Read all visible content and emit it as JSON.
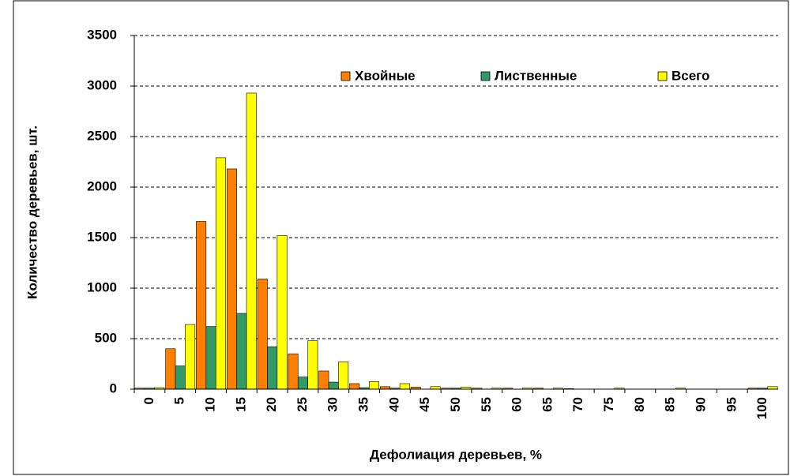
{
  "chart_data": {
    "type": "bar",
    "x_label": "Дефолиация деревьев, %",
    "y_label": "Количество деревьев, шт.",
    "categories": [
      "0",
      "5",
      "10",
      "15",
      "20",
      "25",
      "30",
      "35",
      "40",
      "45",
      "50",
      "55",
      "60",
      "65",
      "70",
      "75",
      "80",
      "85",
      "90",
      "95",
      "100"
    ],
    "series": [
      {
        "name": "Хвойные",
        "color": "#ff8000",
        "values": [
          10,
          400,
          1660,
          2180,
          1090,
          350,
          180,
          55,
          25,
          20,
          10,
          10,
          10,
          10,
          5,
          0,
          0,
          0,
          0,
          0,
          10
        ]
      },
      {
        "name": "Лиственные",
        "color": "#339966",
        "values": [
          10,
          230,
          620,
          750,
          420,
          120,
          70,
          15,
          10,
          0,
          10,
          0,
          0,
          0,
          0,
          0,
          0,
          0,
          0,
          0,
          10
        ]
      },
      {
        "name": "Всего",
        "color": "#ffff00",
        "values": [
          15,
          640,
          2290,
          2930,
          1520,
          480,
          270,
          75,
          55,
          25,
          20,
          10,
          10,
          10,
          0,
          10,
          0,
          10,
          0,
          0,
          25
        ]
      }
    ],
    "ylim": [
      0,
      3500
    ],
    "yticks": [
      0,
      500,
      1000,
      1500,
      2000,
      2500,
      3000,
      3500
    ],
    "grid": true
  }
}
